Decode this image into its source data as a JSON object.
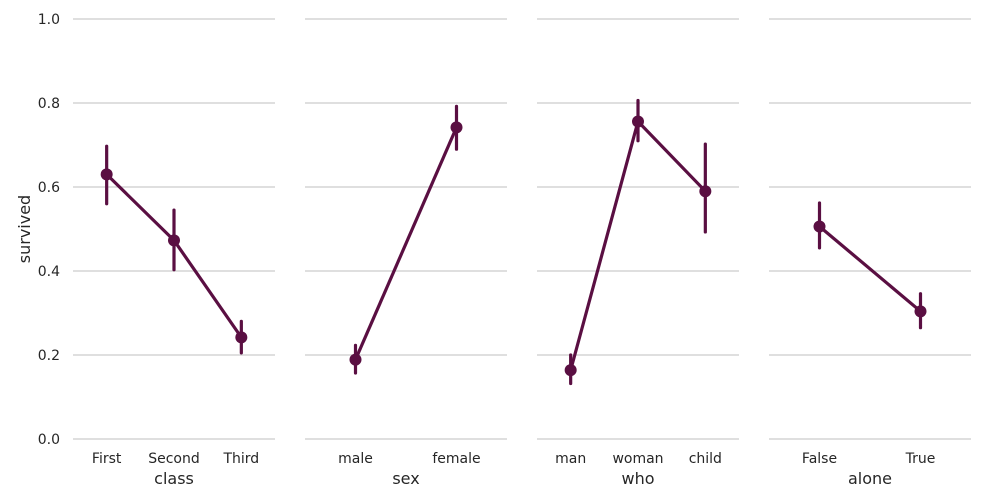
{
  "chart_data": {
    "type": "line",
    "ylabel": "survived",
    "ylim": [
      0,
      1
    ],
    "yticks": [
      "0.0",
      "0.2",
      "0.4",
      "0.6",
      "0.8",
      "1.0"
    ],
    "grid": true,
    "color": "#5a0f42",
    "panels": [
      {
        "xlabel": "class",
        "categories": [
          "First",
          "Second",
          "Third"
        ],
        "values": [
          0.63,
          0.473,
          0.242
        ],
        "ci": [
          [
            0.56,
            0.697
          ],
          [
            0.403,
            0.545
          ],
          [
            0.205,
            0.28
          ]
        ]
      },
      {
        "xlabel": "sex",
        "categories": [
          "male",
          "female"
        ],
        "values": [
          0.189,
          0.742
        ],
        "ci": [
          [
            0.157,
            0.223
          ],
          [
            0.69,
            0.792
          ]
        ]
      },
      {
        "xlabel": "who",
        "categories": [
          "man",
          "woman",
          "child"
        ],
        "values": [
          0.164,
          0.756,
          0.59
        ],
        "ci": [
          [
            0.132,
            0.2
          ],
          [
            0.71,
            0.806
          ],
          [
            0.493,
            0.702
          ]
        ]
      },
      {
        "xlabel": "alone",
        "categories": [
          "False",
          "True"
        ],
        "values": [
          0.506,
          0.304
        ],
        "ci": [
          [
            0.455,
            0.562
          ],
          [
            0.265,
            0.346
          ]
        ]
      }
    ]
  }
}
